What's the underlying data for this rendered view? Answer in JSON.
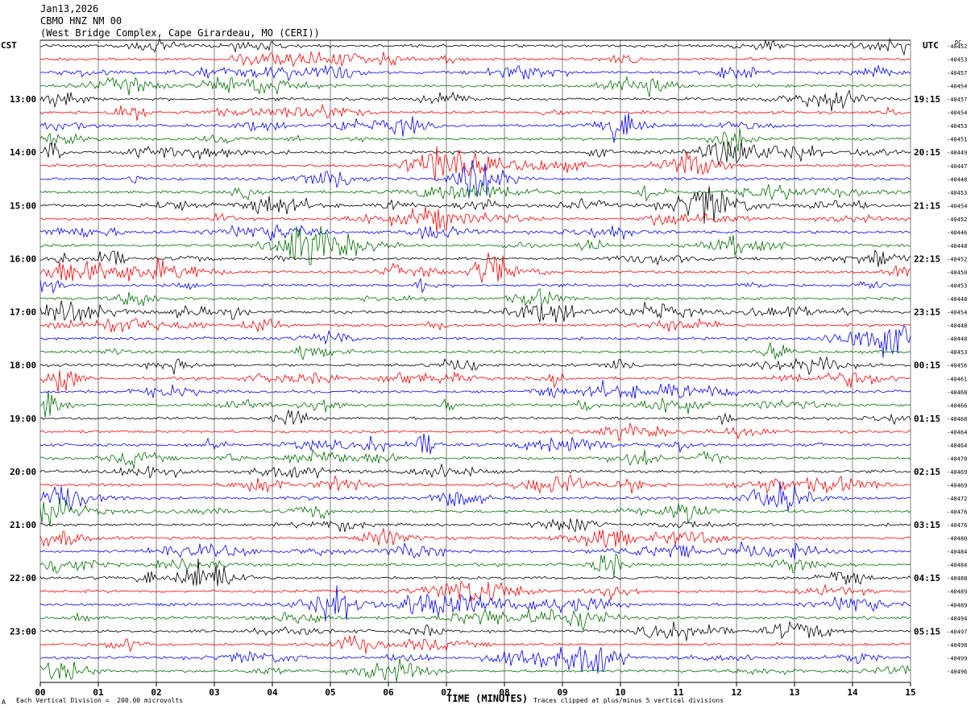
{
  "header": {
    "date": "Jan13,2026",
    "station": "CBMO HNZ NM 00",
    "location": "(West Bridge Complex, Cape Girardeau, MO (CERI))"
  },
  "left_timezone": "CST",
  "right_timezone": "UTC",
  "dc_label": "DC",
  "footer": {
    "scale_note": "Each Vertical Division =  200.00 microvolts",
    "clip_note": "Traces clipped at plus/minus 5 vertical divisions",
    "corner_mark": "A"
  },
  "colors": {
    "trace_cycle": [
      "#000000",
      "#ff0000",
      "#0000ff",
      "#007000"
    ],
    "grid": "#808080"
  },
  "chart_data": {
    "type": "line",
    "xlabel": "TIME (MINUTES)",
    "x_ticks": [
      "00",
      "01",
      "02",
      "03",
      "04",
      "05",
      "06",
      "07",
      "08",
      "09",
      "10",
      "11",
      "12",
      "13",
      "14",
      "15"
    ],
    "xlim": [
      0,
      15
    ],
    "left_hour_labels": [
      "13:00",
      "14:00",
      "15:00",
      "16:00",
      "17:00",
      "18:00",
      "19:00",
      "20:00",
      "21:00",
      "22:00",
      "23:00"
    ],
    "right_hour_labels": [
      "19:15",
      "20:15",
      "21:15",
      "22:15",
      "23:15",
      "00:15",
      "01:15",
      "02:15",
      "03:15",
      "04:15",
      "05:15"
    ],
    "traces_per_hour": 4,
    "dc_offsets": [
      "-40452",
      "-40453",
      "-40457",
      "-40454",
      "-40457",
      "-40454",
      "-40453",
      "-40451",
      "-40449",
      "-40447",
      "-40448",
      "-40453",
      "-40454",
      "-40452",
      "-40446",
      "-40448",
      "-40452",
      "-40450",
      "-40453",
      "-40448",
      "-40454",
      "-40448",
      "-40448",
      "-40453",
      "-40456",
      "-40461",
      "-40468",
      "-40466",
      "-40468",
      "-40464",
      "-40464",
      "-40470",
      "-40469",
      "-40469",
      "-40472",
      "-40476",
      "-40476",
      "-40480",
      "-40484",
      "-40484",
      "-40488",
      "-40489",
      "-40489",
      "-40494",
      "-40497",
      "-40498",
      "-40499",
      "-40496"
    ]
  }
}
